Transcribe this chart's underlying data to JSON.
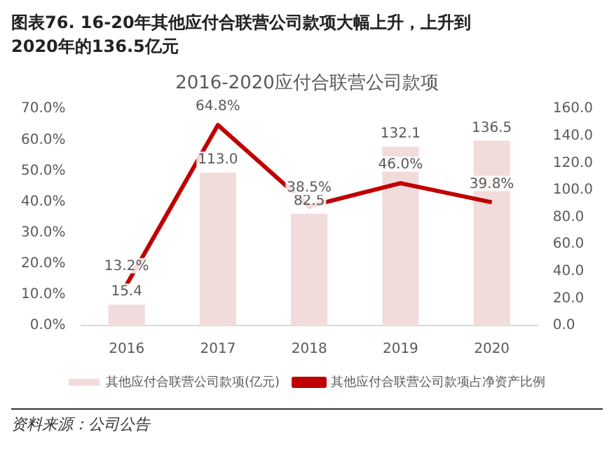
{
  "chart_data": {
    "type": "bar",
    "title": "2016-2020应付合联营公司款项",
    "subtitle": "图表76. 16-20年其他应付合联营公司款项大幅上升，上升到2020年的136.5亿元",
    "annotations": [
      "资料来源：公司公告"
    ],
    "categories": [
      "2016",
      "2017",
      "2018",
      "2019",
      "2020"
    ],
    "series": [
      {
        "name": "其他应付合联营公司款项(亿元)",
        "axis": "y2",
        "color": "#f2dcdb",
        "values": [
          15.4,
          113.0,
          82.5,
          132.1,
          136.5
        ],
        "value_labels": [
          "15.4",
          "113.0",
          "82.5",
          "132.1",
          "136.5"
        ]
      },
      {
        "name": "其他应付合联营公司款项占净资产比例",
        "type": "line",
        "color": "#c00000",
        "values": [
          13.2,
          64.8,
          38.5,
          46.0,
          39.8
        ],
        "value_labels": [
          "13.2%",
          "64.8%",
          "38.5%",
          "46.0%",
          "39.8%"
        ]
      }
    ],
    "ylim": [
      0,
      70
    ],
    "yticks": [
      {
        "value": 0,
        "label": "0.0%"
      },
      {
        "value": 10,
        "label": "10.0%"
      },
      {
        "value": 20,
        "label": "20.0%"
      },
      {
        "value": 30,
        "label": "30.0%"
      },
      {
        "value": 40,
        "label": "40.0%"
      },
      {
        "value": 50,
        "label": "50.0%"
      },
      {
        "value": 60,
        "label": "60.0%"
      },
      {
        "value": 70,
        "label": "70.0%"
      }
    ],
    "y2lim": [
      0,
      160
    ],
    "y2ticks": [
      {
        "value": 0,
        "label": "0.0"
      },
      {
        "value": 20,
        "label": "20.0"
      },
      {
        "value": 40,
        "label": "40.0"
      },
      {
        "value": 60,
        "label": "60.0"
      },
      {
        "value": 80,
        "label": "80.0"
      },
      {
        "value": 100,
        "label": "100.0"
      },
      {
        "value": 120,
        "label": "120.0"
      },
      {
        "value": 140,
        "label": "140.0"
      },
      {
        "value": 160,
        "label": "160.0"
      }
    ],
    "grid": false,
    "legend": "bottom",
    "marker": "none"
  }
}
